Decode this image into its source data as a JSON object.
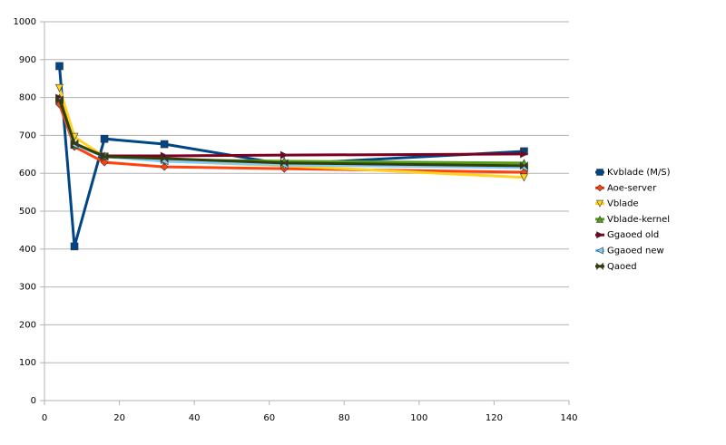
{
  "chart_data": {
    "type": "line",
    "x": [
      4,
      8,
      16,
      32,
      64,
      128
    ],
    "series": [
      {
        "name": "Kvblade (M/S)",
        "color": "#004586",
        "marker": "square",
        "values": [
          883,
          407,
          691,
          677,
          624,
          658
        ]
      },
      {
        "name": "Aoe-server",
        "color": "#ff420e",
        "marker": "diamond",
        "values": [
          782,
          670,
          629,
          617,
          612,
          603
        ]
      },
      {
        "name": "Vblade",
        "color": "#ffd320",
        "marker": "triangle-down",
        "values": [
          825,
          696,
          644,
          632,
          620,
          589
        ]
      },
      {
        "name": "Vblade-kernel",
        "color": "#579d1c",
        "marker": "triangle-up",
        "values": [
          799,
          675,
          646,
          636,
          632,
          627
        ]
      },
      {
        "name": "Ggaoed old",
        "color": "#7e0021",
        "marker": "triangle-right",
        "values": [
          799,
          675,
          646,
          646,
          648,
          651
        ]
      },
      {
        "name": "Ggaoed new",
        "color": "#83caff",
        "marker": "triangle-left",
        "values": [
          794,
          675,
          644,
          632,
          622,
          615
        ]
      },
      {
        "name": "Qaoed",
        "color": "#314004",
        "marker": "bowtie",
        "values": [
          794,
          679,
          644,
          639,
          627,
          620
        ]
      }
    ],
    "xlim": [
      0,
      140
    ],
    "xticks": [
      0,
      20,
      40,
      60,
      80,
      100,
      120,
      140
    ],
    "ylim": [
      0,
      1000
    ],
    "yticks": [
      0,
      100,
      200,
      300,
      400,
      500,
      600,
      700,
      800,
      900,
      1000
    ],
    "grid": true,
    "legend": "right"
  }
}
